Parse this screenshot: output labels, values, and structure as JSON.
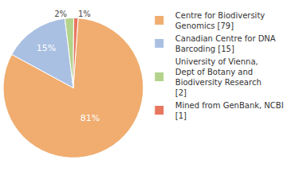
{
  "chart_data": {
    "type": "pie",
    "categories": [
      "Centre for Biodiversity Genomics [79]",
      "Canadian Centre for DNA Barcoding [15]",
      "University of Vienna, Dept of Botany and Biodiversity Research [2]",
      "Mined from GenBank, NCBI [1]"
    ],
    "values": [
      81,
      15,
      2,
      1
    ],
    "value_labels": [
      "81%",
      "15%",
      "2%",
      "1%"
    ],
    "colors": [
      "#f0ad6f",
      "#a9c0e2",
      "#b3d38c",
      "#e8765f"
    ],
    "data_labels": true,
    "legend": "top-right"
  }
}
